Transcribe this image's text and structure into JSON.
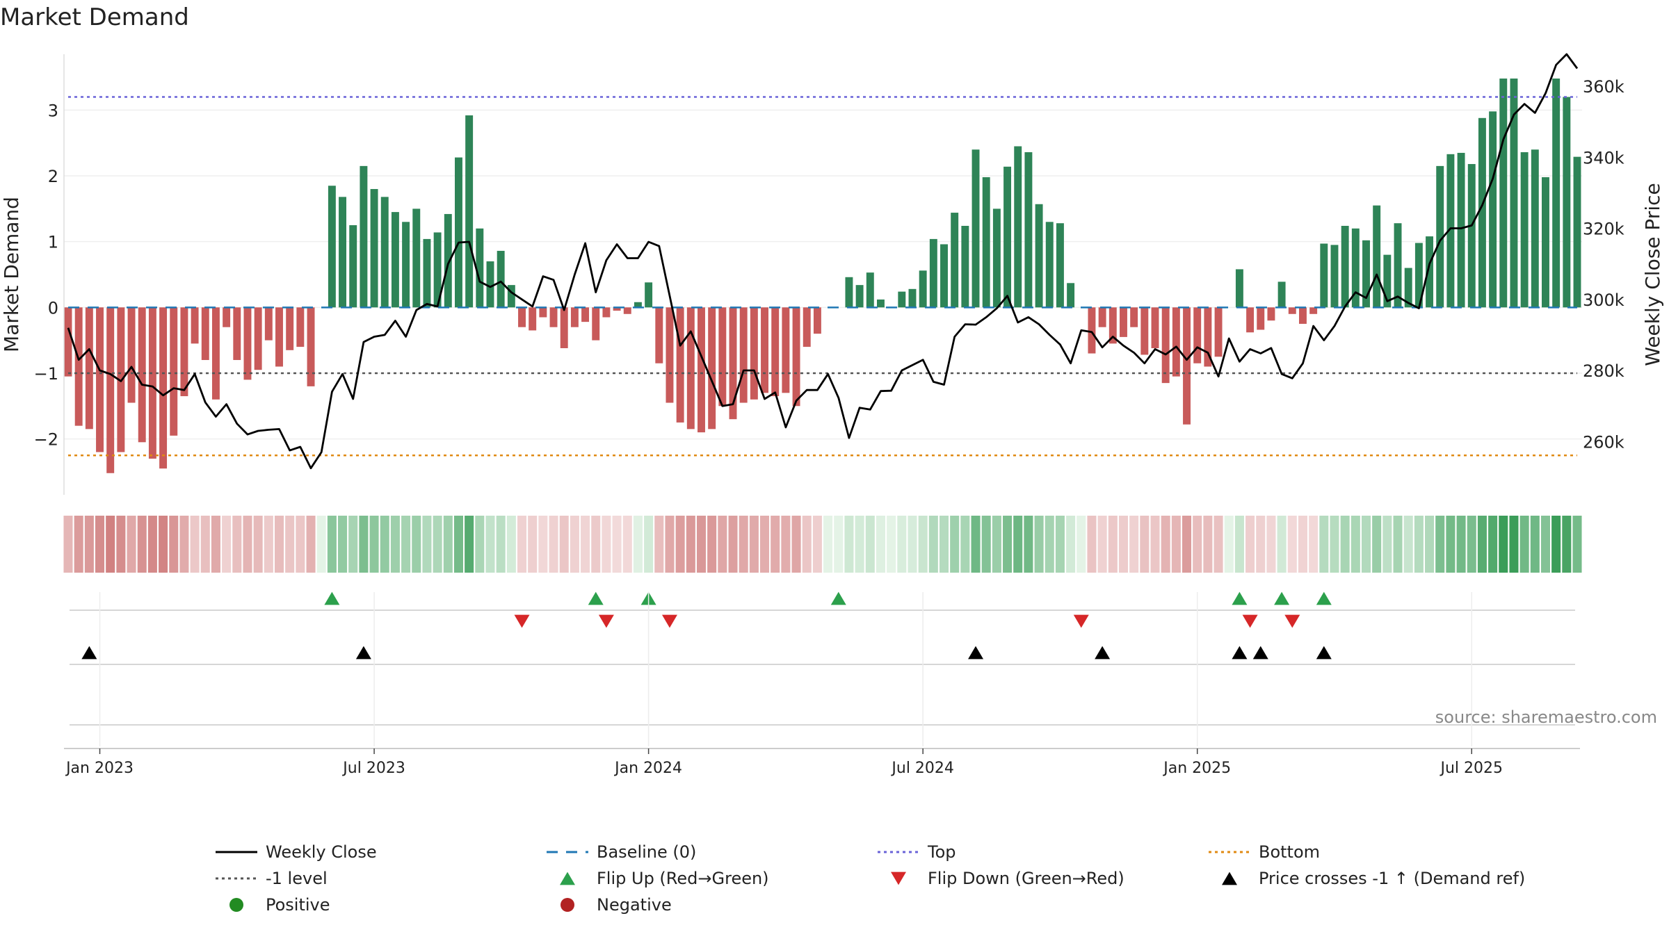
{
  "chart_data": {
    "type": "bar",
    "title": "Market Demand",
    "ylabel_left": "Market Demand",
    "ylabel_right": "Weekly Close Price",
    "source": "source: sharemaestro.com",
    "ylim_left": [
      -2.85,
      3.85
    ],
    "ylim_right": [
      245000,
      369000
    ],
    "left_ticks": [
      {
        "v": 3,
        "label": "3"
      },
      {
        "v": 2,
        "label": "2"
      },
      {
        "v": 1,
        "label": "1"
      },
      {
        "v": 0,
        "label": "0"
      },
      {
        "v": -1,
        "label": "−1"
      },
      {
        "v": -2,
        "label": "−2"
      }
    ],
    "right_ticks": [
      {
        "v": 360000,
        "label": "360k"
      },
      {
        "v": 340000,
        "label": "340k"
      },
      {
        "v": 320000,
        "label": "320k"
      },
      {
        "v": 300000,
        "label": "300k"
      },
      {
        "v": 280000,
        "label": "280k"
      },
      {
        "v": 260000,
        "label": "260k"
      }
    ],
    "x_ticks": [
      {
        "i": 3,
        "label": "Jan 2023"
      },
      {
        "i": 29,
        "label": "Jul 2023"
      },
      {
        "i": 55,
        "label": "Jan 2024"
      },
      {
        "i": 81,
        "label": "Jul 2024"
      },
      {
        "i": 107,
        "label": "Jan 2025"
      },
      {
        "i": 133,
        "label": "Jul 2025"
      }
    ],
    "reference_lines": {
      "top": 3.2,
      "bottom": -2.25,
      "minus_one": -1,
      "baseline": 0
    },
    "demand": [
      -1.05,
      -1.8,
      -1.85,
      -2.2,
      -2.52,
      -2.2,
      -1.45,
      -2.05,
      -2.3,
      -2.45,
      -1.95,
      -1.35,
      -0.55,
      -0.8,
      -1.4,
      -0.3,
      -0.8,
      -1.1,
      -0.95,
      -0.5,
      -0.9,
      -0.65,
      -0.6,
      -1.2,
      0,
      1.85,
      1.68,
      1.25,
      2.15,
      1.8,
      1.68,
      1.45,
      1.3,
      1.5,
      1.04,
      1.14,
      1.42,
      2.28,
      2.92,
      1.2,
      0.7,
      0.86,
      0.34,
      -0.3,
      -0.35,
      -0.15,
      -0.3,
      -0.62,
      -0.3,
      -0.22,
      -0.5,
      -0.15,
      -0.05,
      -0.1,
      0.08,
      0.38,
      -0.85,
      -1.45,
      -1.75,
      -1.85,
      -1.9,
      -1.85,
      -1.5,
      -1.7,
      -1.45,
      -1.4,
      -1.3,
      -1.35,
      -1.3,
      -1.5,
      -0.6,
      -0.4,
      0,
      0,
      0.46,
      0.34,
      0.53,
      0.12,
      0,
      0.24,
      0.28,
      0.56,
      1.04,
      0.96,
      1.44,
      1.24,
      2.4,
      1.98,
      1.5,
      2.14,
      2.45,
      2.36,
      1.57,
      1.3,
      1.28,
      0.37,
      0,
      -0.7,
      -0.3,
      -0.55,
      -0.45,
      -0.3,
      -0.72,
      -0.62,
      -1.15,
      -1.05,
      -1.78,
      -0.85,
      -0.9,
      -0.75,
      0,
      0.58,
      -0.38,
      -0.34,
      -0.2,
      0.39,
      -0.1,
      -0.25,
      -0.1,
      0.97,
      0.95,
      1.24,
      1.2,
      1.02,
      1.55,
      0.8,
      1.28,
      0.6,
      0.98,
      1.08,
      2.15,
      2.33,
      2.35,
      2.18,
      2.88,
      2.98,
      3.48,
      3.48,
      2.36,
      2.4,
      1.98,
      3.48,
      3.2,
      2.29
    ],
    "weekly_close": [
      292000,
      283000,
      286000,
      280000,
      279000,
      277000,
      281000,
      276000,
      275500,
      273000,
      275000,
      274500,
      279000,
      271000,
      267000,
      270500,
      265000,
      262000,
      263000,
      263300,
      263500,
      257500,
      258500,
      252500,
      257000,
      274000,
      279000,
      272000,
      288000,
      289500,
      290000,
      294000,
      289500,
      297000,
      298700,
      298000,
      310000,
      316000,
      316200,
      305000,
      303500,
      305000,
      302000,
      300000,
      298000,
      306500,
      305500,
      297000,
      307000,
      315800,
      302000,
      311000,
      315500,
      311600,
      311600,
      316200,
      315000,
      301000,
      287000,
      291000,
      284000,
      277000,
      270000,
      270500,
      280000,
      280000,
      272000,
      273800,
      264000,
      271500,
      274500,
      274500,
      279000,
      272300,
      261000,
      269500,
      269000,
      274200,
      274300,
      280000,
      281500,
      283000,
      276800,
      276000,
      289500,
      293000,
      292900,
      295000,
      297500,
      301000,
      293500,
      295000,
      293000,
      290000,
      287300,
      282000,
      291300,
      290800,
      286500,
      289500,
      287000,
      285000,
      282000,
      286000,
      284500,
      286700,
      283000,
      286500,
      285000,
      278300,
      289000,
      282500,
      286000,
      284800,
      286300,
      279000,
      277800,
      282000,
      292500,
      288500,
      292500,
      298000,
      302000,
      300400,
      307000,
      299500,
      300800,
      299000,
      297500,
      310000,
      316500,
      320000,
      320000,
      320800,
      326500,
      334000,
      345000,
      352000,
      355000,
      352500,
      358000,
      366000,
      369000,
      365000
    ],
    "flip_up_indices": [
      25,
      50,
      55,
      73,
      111,
      115,
      119
    ],
    "flip_down_indices": [
      43,
      51,
      57,
      96,
      112,
      116
    ],
    "price_cross_indices": [
      2,
      28,
      86,
      98,
      111,
      113,
      119
    ],
    "legend": [
      {
        "id": "weekly_close",
        "label": "Weekly Close",
        "kind": "line",
        "color": "#000000"
      },
      {
        "id": "baseline",
        "label": "Baseline (0)",
        "kind": "dash",
        "color": "#1f77b4"
      },
      {
        "id": "top",
        "label": "Top",
        "kind": "dot",
        "color": "#6a63d8"
      },
      {
        "id": "bottom",
        "label": "Bottom",
        "kind": "dot",
        "color": "#e08a12"
      },
      {
        "id": "minus_one",
        "label": "-1 level",
        "kind": "dot",
        "color": "#555555"
      },
      {
        "id": "flip_up",
        "label": "Flip Up (Red→Green)",
        "kind": "tri_up",
        "color": "#2ca04c"
      },
      {
        "id": "flip_down",
        "label": "Flip Down (Green→Red)",
        "kind": "tri_down",
        "color": "#d62728"
      },
      {
        "id": "price_cross",
        "label": "Price crosses -1 ↑ (Demand ref)",
        "kind": "tri_up",
        "color": "#000000"
      },
      {
        "id": "positive",
        "label": "Positive",
        "kind": "circle",
        "color": "#228b22"
      },
      {
        "id": "negative",
        "label": "Negative",
        "kind": "circle",
        "color": "#b22222"
      }
    ],
    "colors": {
      "positive_bar": "#2e8457",
      "negative_bar": "#c85a5a",
      "grid": "#ececec",
      "axis_text": "#222222"
    }
  }
}
